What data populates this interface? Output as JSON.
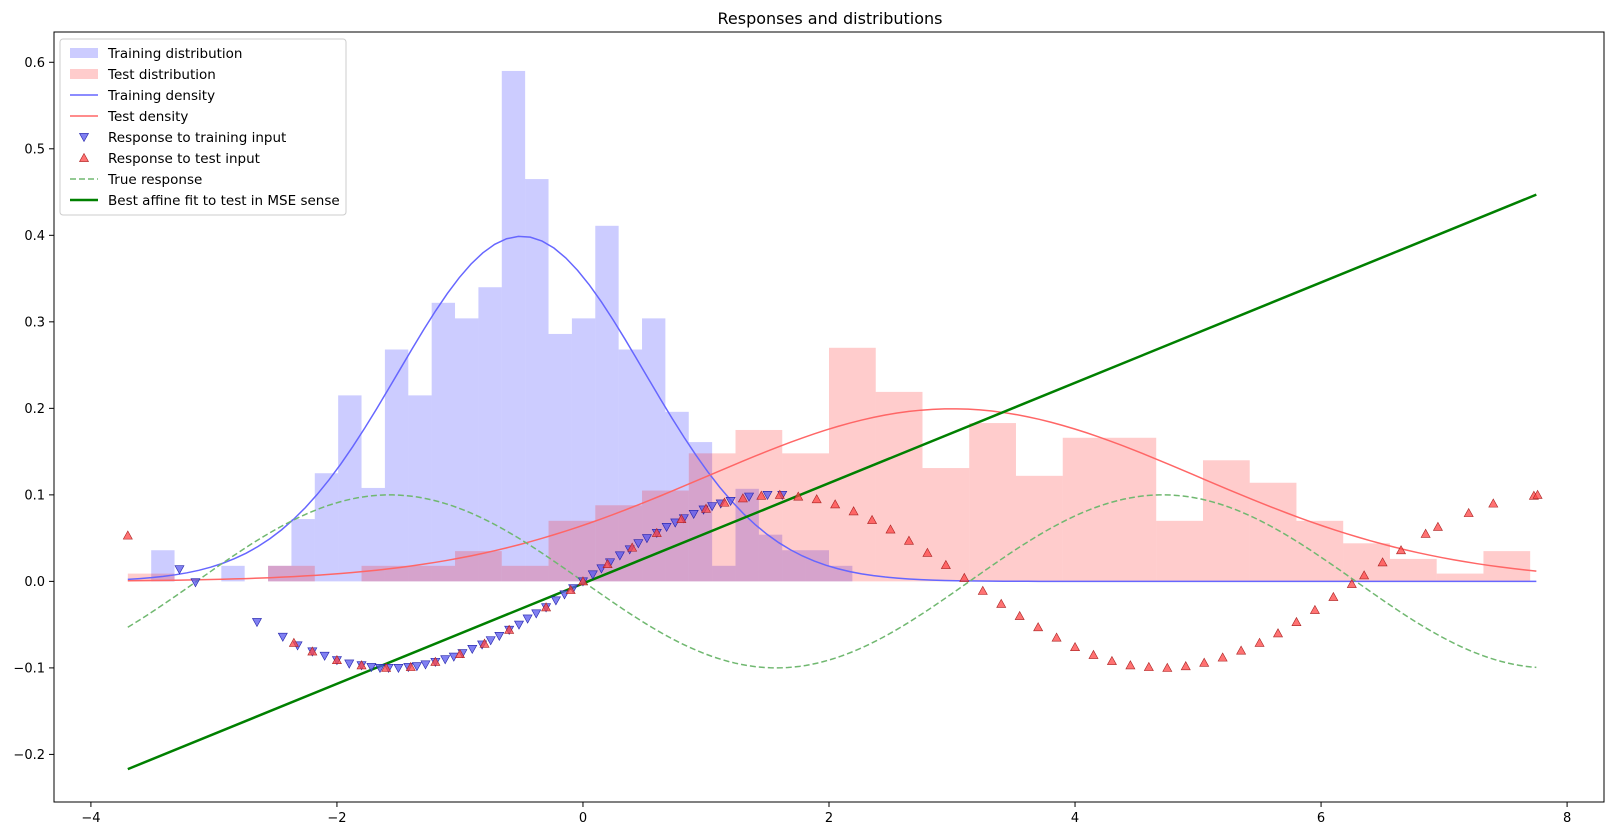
{
  "chart_data": {
    "type": "line",
    "title": "Responses and distributions",
    "xlabel": "",
    "ylabel": "",
    "xlim": [
      -4.3,
      8.3
    ],
    "ylim": [
      -0.255,
      0.635
    ],
    "xticks": [
      -4,
      -2,
      0,
      2,
      4,
      6,
      8
    ],
    "yticks": [
      -0.2,
      -0.1,
      0.0,
      0.1,
      0.2,
      0.3,
      0.4,
      0.5,
      0.6
    ],
    "grid": false,
    "legend_position": "top-left",
    "colors": {
      "train_hist": "#ccccff",
      "test_hist": "#ffcccc",
      "overlap_hist": "#d2a6d2",
      "train_density": "#6666ff",
      "test_density": "#ff6666",
      "train_marker": "#5555ee",
      "test_marker": "#ff4444",
      "true_response": "#70b870",
      "affine_fit": "#008000"
    },
    "legend": [
      {
        "label": "Training distribution",
        "kind": "patch",
        "color": "#ccccff"
      },
      {
        "label": "Test distribution",
        "kind": "patch",
        "color": "#ffcccc"
      },
      {
        "label": "Training density",
        "kind": "line",
        "color": "#6666ff"
      },
      {
        "label": "Test density",
        "kind": "line",
        "color": "#ff6666"
      },
      {
        "label": "Response to training input",
        "kind": "tri-down",
        "color": "#5555ee"
      },
      {
        "label": "Response to test input",
        "kind": "tri-up",
        "color": "#ff4444"
      },
      {
        "label": "True response",
        "kind": "dashed",
        "color": "#70b870"
      },
      {
        "label": "Best affine fit to test in MSE sense",
        "kind": "thick",
        "color": "#008000"
      }
    ],
    "training_hist": {
      "edges": [
        -3.7,
        -3.51,
        -3.32,
        -3.13,
        -2.94,
        -2.75,
        -2.56,
        -2.37,
        -2.18,
        -1.99,
        -1.8,
        -1.61,
        -1.42,
        -1.23,
        -1.04,
        -0.85,
        -0.66,
        -0.47,
        -0.28,
        -0.09,
        0.1,
        0.29,
        0.48,
        0.67,
        0.86,
        1.05,
        1.24,
        1.43,
        1.62,
        1.81,
        2.0,
        2.19
      ],
      "heights": [
        0.0,
        0.036,
        0.0,
        0.0,
        0.018,
        0.0,
        0.018,
        0.072,
        0.125,
        0.215,
        0.108,
        0.268,
        0.215,
        0.322,
        0.304,
        0.34,
        0.59,
        0.465,
        0.286,
        0.304,
        0.411,
        0.268,
        0.304,
        0.196,
        0.161,
        0.018,
        0.107,
        0.054,
        0.036,
        0.036,
        0.018
      ]
    },
    "test_hist": {
      "edges": [
        -3.7,
        -3.32,
        -2.94,
        -2.56,
        -2.18,
        -1.8,
        -1.42,
        -1.04,
        -0.66,
        -0.28,
        0.1,
        0.48,
        0.86,
        1.24,
        1.62,
        2.0,
        2.38,
        2.76,
        3.14,
        3.52,
        3.9,
        4.28,
        4.66,
        5.04,
        5.42,
        5.8,
        6.18,
        6.56,
        6.94,
        7.32,
        7.7
      ],
      "heights": [
        0.009,
        0.0,
        0.0,
        0.018,
        0.0,
        0.018,
        0.018,
        0.035,
        0.018,
        0.07,
        0.088,
        0.105,
        0.148,
        0.175,
        0.148,
        0.27,
        0.219,
        0.131,
        0.183,
        0.122,
        0.166,
        0.166,
        0.07,
        0.14,
        0.114,
        0.07,
        0.044,
        0.026,
        0.009,
        0.035
      ]
    },
    "training_density": {
      "mean": -0.5,
      "std": 1.0,
      "x_range": [
        -3.7,
        7.75
      ]
    },
    "test_density": {
      "mean": 3.0,
      "std": 2.0,
      "x_range": [
        -3.7,
        7.75
      ]
    },
    "true_response": {
      "formula": "-0.1*sin(x)",
      "x_range": [
        -3.7,
        7.75
      ]
    },
    "affine_fit": {
      "x": [
        -3.7,
        7.75
      ],
      "y": [
        -0.217,
        0.447
      ]
    },
    "response_training_input": {
      "x": [
        -3.28,
        -3.15,
        -2.65,
        -2.44,
        -2.32,
        -2.2,
        -2.1,
        -2.0,
        -1.9,
        -1.8,
        -1.72,
        -1.65,
        -1.58,
        -1.5,
        -1.42,
        -1.35,
        -1.28,
        -1.2,
        -1.12,
        -1.05,
        -0.98,
        -0.9,
        -0.82,
        -0.75,
        -0.68,
        -0.6,
        -0.52,
        -0.45,
        -0.38,
        -0.3,
        -0.22,
        -0.15,
        -0.08,
        0.0,
        0.08,
        0.15,
        0.22,
        0.3,
        0.38,
        0.45,
        0.52,
        0.6,
        0.68,
        0.75,
        0.82,
        0.9,
        0.98,
        1.05,
        1.12,
        1.2,
        1.35,
        1.5,
        1.62
      ],
      "y": [
        0.014,
        -0.001,
        -0.047,
        -0.064,
        -0.074,
        -0.081,
        -0.086,
        -0.091,
        -0.095,
        -0.097,
        -0.099,
        -0.1,
        -0.1,
        -0.1,
        -0.099,
        -0.098,
        -0.096,
        -0.093,
        -0.09,
        -0.087,
        -0.083,
        -0.078,
        -0.073,
        -0.068,
        -0.063,
        -0.056,
        -0.05,
        -0.043,
        -0.037,
        -0.03,
        -0.022,
        -0.015,
        -0.008,
        0.0,
        0.008,
        0.015,
        0.022,
        0.03,
        0.037,
        0.044,
        0.05,
        0.056,
        0.063,
        0.068,
        0.073,
        0.078,
        0.083,
        0.087,
        0.09,
        0.093,
        0.098,
        0.1,
        0.1
      ]
    },
    "response_test_input": {
      "x": [
        -3.7,
        -2.35,
        -2.2,
        -2.0,
        -1.8,
        -1.6,
        -1.4,
        -1.2,
        -1.0,
        -0.8,
        -0.6,
        -0.3,
        -0.1,
        0.0,
        0.2,
        0.4,
        0.6,
        0.8,
        1.0,
        1.15,
        1.3,
        1.45,
        1.6,
        1.75,
        1.9,
        2.05,
        2.2,
        2.35,
        2.5,
        2.65,
        2.8,
        2.95,
        3.1,
        3.25,
        3.4,
        3.55,
        3.7,
        3.85,
        4.0,
        4.15,
        4.3,
        4.45,
        4.6,
        4.75,
        4.9,
        5.05,
        5.2,
        5.35,
        5.5,
        5.65,
        5.8,
        5.95,
        6.1,
        6.25,
        6.35,
        6.5,
        6.65,
        6.85,
        6.95,
        7.2,
        7.4,
        7.73,
        7.76
      ],
      "y": [
        0.053,
        -0.071,
        -0.081,
        -0.091,
        -0.097,
        -0.1,
        -0.099,
        -0.093,
        -0.084,
        -0.072,
        -0.056,
        -0.03,
        -0.01,
        0.0,
        0.02,
        0.039,
        0.056,
        0.072,
        0.084,
        0.091,
        0.096,
        0.099,
        0.1,
        0.098,
        0.095,
        0.089,
        0.081,
        0.071,
        0.06,
        0.047,
        0.033,
        0.019,
        0.004,
        -0.011,
        -0.026,
        -0.04,
        -0.053,
        -0.065,
        -0.076,
        -0.085,
        -0.092,
        -0.097,
        -0.099,
        -0.1,
        -0.098,
        -0.094,
        -0.088,
        -0.08,
        -0.071,
        -0.06,
        -0.047,
        -0.033,
        -0.018,
        -0.003,
        0.007,
        0.022,
        0.036,
        0.055,
        0.063,
        0.079,
        0.09,
        0.099,
        0.1
      ]
    }
  }
}
